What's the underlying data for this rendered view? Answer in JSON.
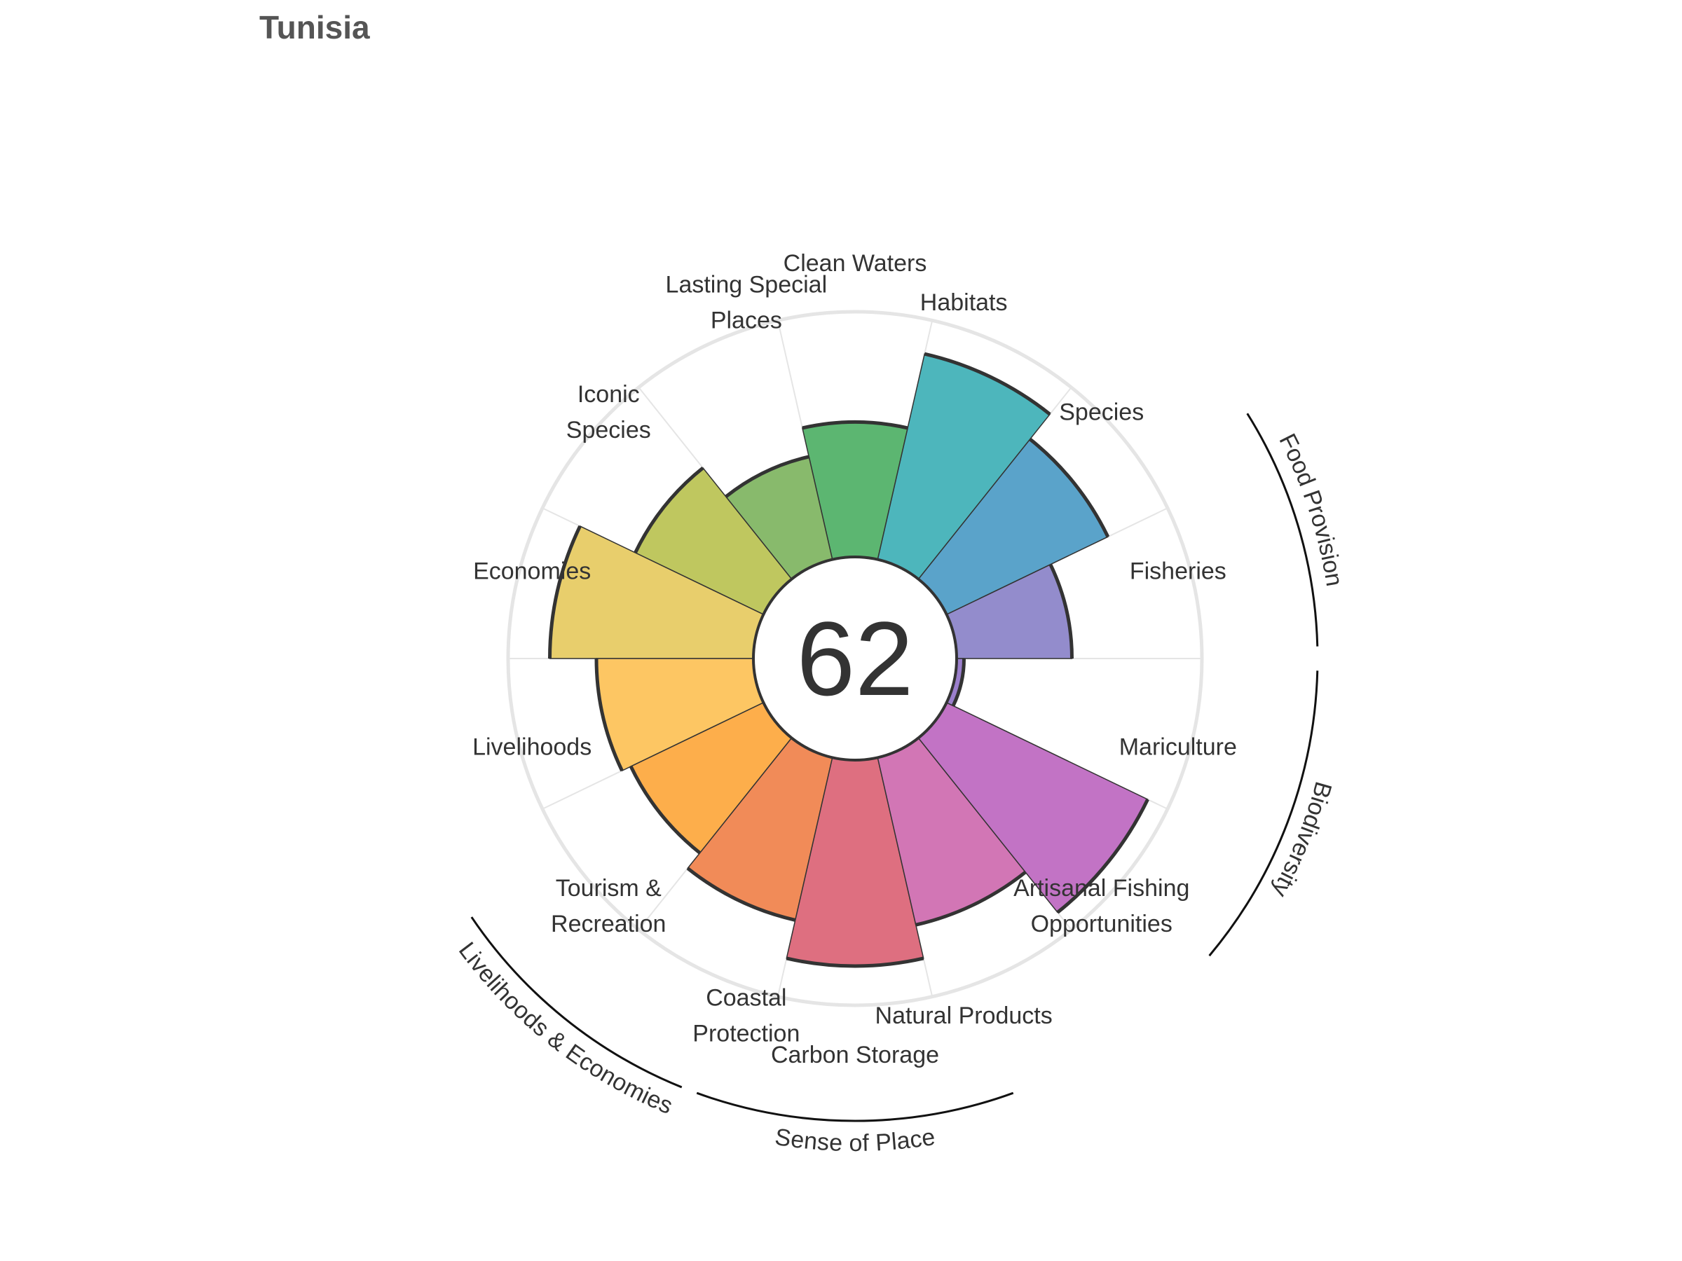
{
  "title": "Tunisia",
  "chart_data": {
    "type": "flower",
    "title": "Tunisia",
    "overall_score": "62",
    "ylim": [
      0,
      100
    ],
    "goals": [
      {
        "name": "Fisheries",
        "label_lines": [
          "Fisheries"
        ],
        "value": 47,
        "color": "#938CCC"
      },
      {
        "name": "Species",
        "label_lines": [
          "Species"
        ],
        "value": 73,
        "color": "#5AA3CA"
      },
      {
        "name": "Habitats",
        "label_lines": [
          "Habitats"
        ],
        "value": 86,
        "color": "#4DB6BC"
      },
      {
        "name": "Clean Waters",
        "label_lines": [
          "Clean Waters"
        ],
        "value": 55,
        "color": "#5CB671"
      },
      {
        "name": "Lasting Special Places",
        "label_lines": [
          "Lasting Special",
          "Places"
        ],
        "value": 43,
        "color": "#88BA6C"
      },
      {
        "name": "Iconic Species",
        "label_lines": [
          "Iconic",
          "Species"
        ],
        "value": 58,
        "color": "#BFC75F"
      },
      {
        "name": "Economies",
        "label_lines": [
          "Economies"
        ],
        "value": 83,
        "color": "#E8CE6C"
      },
      {
        "name": "Livelihoods",
        "label_lines": [
          "Livelihoods"
        ],
        "value": 64,
        "color": "#FDC663"
      },
      {
        "name": "Tourism & Recreation",
        "label_lines": [
          "Tourism &",
          "Recreation"
        ],
        "value": 60,
        "color": "#FDAE4B"
      },
      {
        "name": "Coastal Protection",
        "label_lines": [
          "Coastal",
          "Protection"
        ],
        "value": 68,
        "color": "#F18B58"
      },
      {
        "name": "Carbon Storage",
        "label_lines": [
          "Carbon Storage"
        ],
        "value": 84,
        "color": "#DE6F80"
      },
      {
        "name": "Natural Products",
        "label_lines": [
          "Natural Products"
        ],
        "value": 70,
        "color": "#D276B5"
      },
      {
        "name": "Artisanal Fishing Opportunities",
        "label_lines": [
          "Artisanal Fishing",
          "Opportunities"
        ],
        "value": 91,
        "color": "#C273C5"
      },
      {
        "name": "Mariculture",
        "label_lines": [
          "Mariculture"
        ],
        "value": 3,
        "color": "#9B7FCC"
      }
    ],
    "groups": [
      {
        "name": "Food Provision",
        "label": "Food Provision"
      },
      {
        "name": "Biodiversity",
        "label": "Biodiversity"
      },
      {
        "name": "Sense of Place",
        "label": "Sense of Place"
      },
      {
        "name": "Livelihoods & Economies",
        "label": "Livelihoods & Economies"
      }
    ],
    "colors": {
      "grid": "#E5E5E5",
      "outline": "#333333",
      "text": "#333333",
      "title": "#555555"
    }
  }
}
